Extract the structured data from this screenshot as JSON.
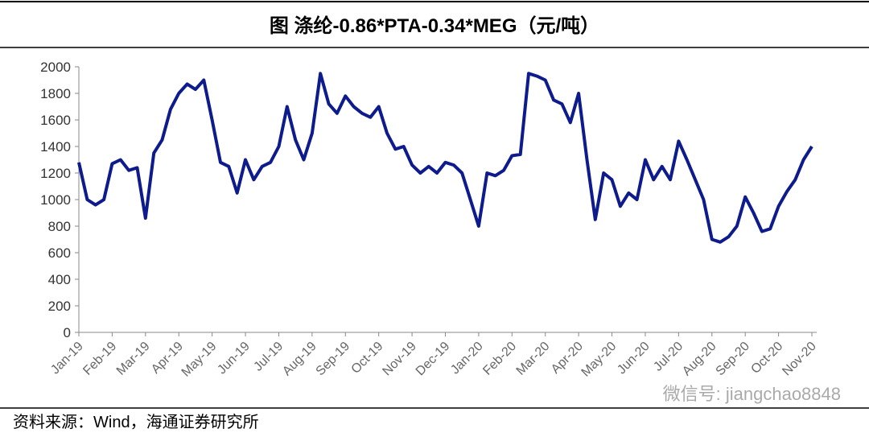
{
  "chart_data": {
    "type": "line",
    "title": "图  涤纶-0.86*PTA-0.34*MEG（元/吨）",
    "source": "资料来源：Wind，海通证券研究所",
    "watermark": "微信号: jiangchao8848",
    "categories": [
      "Jan-19",
      "Feb-19",
      "Mar-19",
      "Apr-19",
      "May-19",
      "Jun-19",
      "Jul-19",
      "Aug-19",
      "Sep-19",
      "Oct-19",
      "Nov-19",
      "Dec-19",
      "Jan-20",
      "Feb-20",
      "Mar-20",
      "Apr-20",
      "May-20",
      "Jun-20",
      "Jul-20",
      "Aug-20",
      "Sep-20",
      "Oct-20",
      "Nov-20"
    ],
    "x": [
      "Jan-19",
      "Jan-19",
      "Jan-19",
      "Jan-19",
      "Feb-19",
      "Feb-19",
      "Feb-19",
      "Feb-19",
      "Mar-19",
      "Mar-19",
      "Mar-19",
      "Mar-19",
      "Apr-19",
      "Apr-19",
      "Apr-19",
      "Apr-19",
      "May-19",
      "May-19",
      "May-19",
      "May-19",
      "Jun-19",
      "Jun-19",
      "Jun-19",
      "Jun-19",
      "Jul-19",
      "Jul-19",
      "Jul-19",
      "Jul-19",
      "Aug-19",
      "Aug-19",
      "Aug-19",
      "Aug-19",
      "Sep-19",
      "Sep-19",
      "Sep-19",
      "Sep-19",
      "Oct-19",
      "Oct-19",
      "Oct-19",
      "Oct-19",
      "Nov-19",
      "Nov-19",
      "Nov-19",
      "Nov-19",
      "Dec-19",
      "Dec-19",
      "Dec-19",
      "Dec-19",
      "Jan-20",
      "Jan-20",
      "Jan-20",
      "Jan-20",
      "Feb-20",
      "Feb-20",
      "Feb-20",
      "Feb-20",
      "Mar-20",
      "Mar-20",
      "Mar-20",
      "Mar-20",
      "Apr-20",
      "Apr-20",
      "Apr-20",
      "Apr-20",
      "May-20",
      "May-20",
      "May-20",
      "May-20",
      "Jun-20",
      "Jun-20",
      "Jun-20",
      "Jun-20",
      "Jul-20",
      "Jul-20",
      "Jul-20",
      "Jul-20",
      "Aug-20",
      "Aug-20",
      "Aug-20",
      "Aug-20",
      "Sep-20",
      "Sep-20",
      "Sep-20",
      "Sep-20",
      "Oct-20",
      "Oct-20",
      "Oct-20",
      "Oct-20",
      "Nov-20"
    ],
    "series": [
      {
        "color": "#0d1b8c",
        "values": [
          1280,
          1000,
          960,
          1000,
          1270,
          1300,
          1220,
          1240,
          860,
          1350,
          1450,
          1680,
          1800,
          1870,
          1830,
          1900,
          1600,
          1280,
          1250,
          1050,
          1300,
          1150,
          1250,
          1280,
          1400,
          1700,
          1450,
          1300,
          1500,
          1950,
          1720,
          1650,
          1780,
          1700,
          1650,
          1620,
          1700,
          1500,
          1380,
          1400,
          1260,
          1200,
          1250,
          1200,
          1280,
          1260,
          1200,
          1000,
          800,
          1200,
          1180,
          1220,
          1330,
          1340,
          1950,
          1930,
          1900,
          1750,
          1720,
          1580,
          1800,
          1300,
          850,
          1200,
          1150,
          950,
          1050,
          1000,
          1300,
          1150,
          1250,
          1150,
          1440,
          1300,
          1150,
          1000,
          700,
          680,
          720,
          800,
          1020,
          900,
          760,
          780,
          950,
          1060,
          1150,
          1300,
          1400
        ]
      }
    ],
    "ylim": [
      0,
      2000
    ],
    "yticks": [
      0,
      200,
      400,
      600,
      800,
      1000,
      1200,
      1400,
      1600,
      1800,
      2000
    ]
  }
}
